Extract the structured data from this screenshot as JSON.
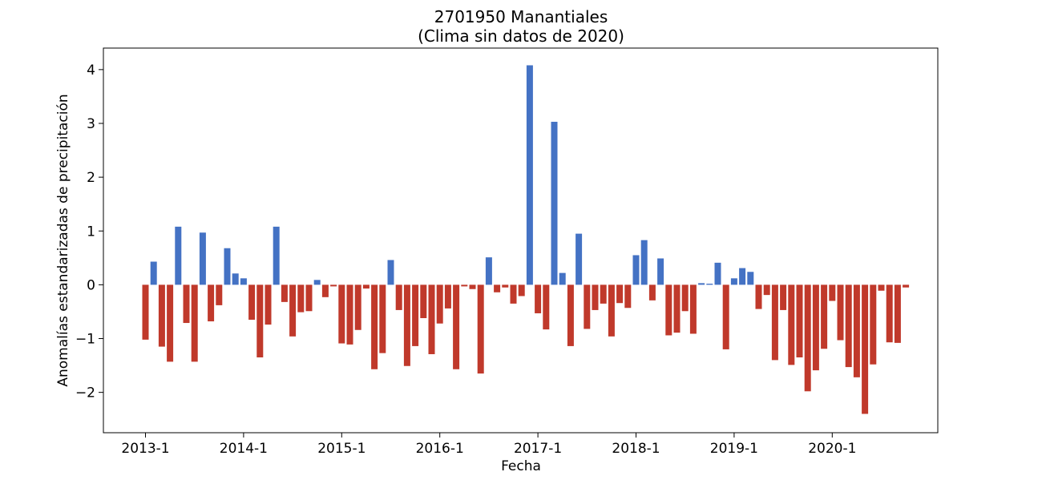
{
  "chart_data": {
    "type": "bar",
    "title": "2701950 Manantiales",
    "subtitle": "(Clima sin datos de 2020)",
    "xlabel": "Fecha",
    "ylabel": "Anomalías estandarizadas de precipitación",
    "ylim": [
      -2.75,
      4.4
    ],
    "yticks": [
      -2,
      -1,
      0,
      1,
      2,
      3,
      4
    ],
    "ytick_labels": [
      "−2",
      "−1",
      "0",
      "1",
      "2",
      "3",
      "4"
    ],
    "xticks": [
      "2013-1",
      "2014-1",
      "2015-1",
      "2016-1",
      "2017-1",
      "2018-1",
      "2019-1",
      "2020-1"
    ],
    "start": "2013-01",
    "months": 94,
    "grid": false,
    "legend": "none",
    "colors": {
      "positive": "#4472c4",
      "negative": "#c0392b"
    },
    "values": [
      -1.02,
      0.43,
      -1.15,
      -1.43,
      1.08,
      -0.71,
      -1.43,
      0.97,
      -0.68,
      -0.38,
      0.68,
      0.21,
      0.12,
      -0.65,
      -1.35,
      -0.74,
      1.08,
      -0.32,
      -0.96,
      -0.51,
      -0.49,
      0.09,
      -0.23,
      -0.03,
      -1.09,
      -1.11,
      -0.84,
      -0.07,
      -1.57,
      -1.27,
      0.46,
      -0.47,
      -1.51,
      -1.14,
      -0.62,
      -1.29,
      -0.72,
      -0.44,
      -1.57,
      -0.03,
      -0.08,
      -1.65,
      0.51,
      -0.14,
      -0.05,
      -0.35,
      -0.21,
      4.08,
      -0.53,
      -0.83,
      3.03,
      0.22,
      -1.14,
      0.95,
      -0.82,
      -0.47,
      -0.35,
      -0.96,
      -0.34,
      -0.43,
      0.55,
      0.83,
      -0.29,
      0.49,
      -0.94,
      -0.89,
      -0.49,
      -0.91,
      0.03,
      0.02,
      0.41,
      -1.2,
      0.12,
      0.31,
      0.24,
      -0.45,
      -0.19,
      -1.4,
      -0.47,
      -1.49,
      -1.35,
      -1.98,
      -1.59,
      -1.19,
      -0.3,
      -1.03,
      -1.53,
      -1.72,
      -2.4,
      -1.48,
      -0.11,
      -1.07,
      -1.08,
      -0.05
    ]
  }
}
